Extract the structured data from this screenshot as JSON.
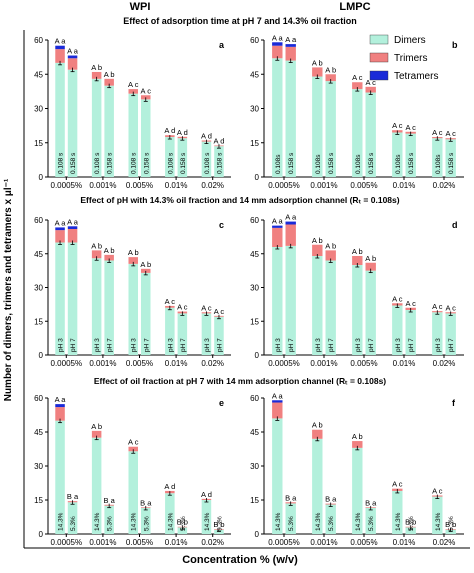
{
  "figure": {
    "ylabel": "Number of dimers, trimers and tetramers x μl⁻¹",
    "xlabel": "Concentration % (w/v)",
    "col_titles": [
      "WPI",
      "LMPC"
    ],
    "row_titles": [
      "Effect of adsorption time at pH 7 and 14.3% oil fraction",
      "Effect of pH with 14.3% oil fraction and 14 mm adsorption channel (Rₜ = 0.108s)",
      "Effect of oil fraction at pH 7 with 14 mm adsorption channel (Rₜ = 0.108s)"
    ],
    "legend": [
      {
        "name": "Dimers",
        "color": "#b3f0dc"
      },
      {
        "name": "Trimers",
        "color": "#f08080"
      },
      {
        "name": "Tetramers",
        "color": "#1a2ad8"
      }
    ]
  },
  "chart_data": [
    {
      "panel": "a",
      "type": "bar",
      "stacked": true,
      "categories": [
        "0.0005%",
        "0.001%",
        "0.005%",
        "0.01%",
        "0.02%"
      ],
      "bar_labels": [
        "0.108 s",
        "0.158 s"
      ],
      "ylim": [
        0,
        60
      ],
      "yticks": [
        0,
        15,
        30,
        45,
        60
      ],
      "groups": [
        {
          "bars": [
            {
              "dimers": 50,
              "trimers": 6,
              "tetramers": 1.5
            },
            {
              "dimers": 47,
              "trimers": 5,
              "tetramers": 1.2
            }
          ],
          "letters": [
            "A a",
            "A a"
          ]
        },
        {
          "bars": [
            {
              "dimers": 43,
              "trimers": 3
            },
            {
              "dimers": 40,
              "trimers": 3
            }
          ],
          "letters": [
            "A b",
            "A b"
          ]
        },
        {
          "bars": [
            {
              "dimers": 36.5,
              "trimers": 2
            },
            {
              "dimers": 34,
              "trimers": 1.8
            }
          ],
          "letters": [
            "A c",
            "A c"
          ]
        },
        {
          "bars": [
            {
              "dimers": 17.5,
              "trimers": 0.8
            },
            {
              "dimers": 17,
              "trimers": 0.6
            }
          ],
          "letters": [
            "A d",
            "A d"
          ]
        },
        {
          "bars": [
            {
              "dimers": 15.5,
              "trimers": 0.5
            },
            {
              "dimers": 13.5,
              "trimers": 0.3
            }
          ],
          "letters": [
            "A d",
            "A d"
          ]
        }
      ]
    },
    {
      "panel": "b",
      "type": "bar",
      "stacked": true,
      "categories": [
        "0.0005%",
        "0.001%",
        "0.005%",
        "0.01%",
        "0.02%"
      ],
      "bar_labels": [
        "0.108s",
        "0.158 s"
      ],
      "ylim": [
        0,
        60
      ],
      "yticks": [
        0,
        15,
        30,
        45,
        60
      ],
      "groups": [
        {
          "bars": [
            {
              "dimers": 52,
              "trimers": 5.5,
              "tetramers": 1.5
            },
            {
              "dimers": 51,
              "trimers": 6,
              "tetramers": 1.2
            }
          ],
          "letters": [
            "A a",
            "A a"
          ]
        },
        {
          "bars": [
            {
              "dimers": 44,
              "trimers": 4
            },
            {
              "dimers": 42,
              "trimers": 3
            }
          ],
          "letters": [
            "A b",
            "A b"
          ]
        },
        {
          "bars": [
            {
              "dimers": 38.5,
              "trimers": 3
            },
            {
              "dimers": 37,
              "trimers": 2.5
            }
          ],
          "letters": [
            "A c",
            "A c"
          ]
        },
        {
          "bars": [
            {
              "dimers": 19.5,
              "trimers": 1
            },
            {
              "dimers": 19,
              "trimers": 0.8
            }
          ],
          "letters": [
            "A c",
            "A c"
          ]
        },
        {
          "bars": [
            {
              "dimers": 17,
              "trimers": 0.5
            },
            {
              "dimers": 16.5,
              "trimers": 0.5
            }
          ],
          "letters": [
            "A c",
            "A c"
          ]
        }
      ]
    },
    {
      "panel": "c",
      "type": "bar",
      "stacked": true,
      "categories": [
        "0.0005%",
        "0.001%",
        "0.005%",
        "0.01%",
        "0.02%"
      ],
      "bar_labels": [
        "pH 3",
        "pH 7"
      ],
      "ylim": [
        0,
        60
      ],
      "yticks": [
        0,
        15,
        30,
        45,
        60
      ],
      "groups": [
        {
          "bars": [
            {
              "dimers": 50,
              "trimers": 5.5,
              "tetramers": 1.2
            },
            {
              "dimers": 50,
              "trimers": 6,
              "tetramers": 1.2
            }
          ],
          "letters": [
            "A a",
            "A a"
          ]
        },
        {
          "bars": [
            {
              "dimers": 43,
              "trimers": 3.5
            },
            {
              "dimers": 42,
              "trimers": 2.5
            }
          ],
          "letters": [
            "A b",
            "A b"
          ]
        },
        {
          "bars": [
            {
              "dimers": 40.5,
              "trimers": 3
            },
            {
              "dimers": 36.5,
              "trimers": 1.8
            }
          ],
          "letters": [
            "A b",
            "A b"
          ]
        },
        {
          "bars": [
            {
              "dimers": 21,
              "trimers": 0.8
            },
            {
              "dimers": 18.5,
              "trimers": 0.8
            }
          ],
          "letters": [
            "A c",
            "A c"
          ]
        },
        {
          "bars": [
            {
              "dimers": 18.5,
              "trimers": 0.5
            },
            {
              "dimers": 17,
              "trimers": 0.4
            }
          ],
          "letters": [
            "A c",
            "A c"
          ]
        }
      ]
    },
    {
      "panel": "d",
      "type": "bar",
      "stacked": true,
      "categories": [
        "0.0005%",
        "0.001%",
        "0.005%",
        "0.01%",
        "0.02%"
      ],
      "bar_labels": [
        "pH 3",
        "pH 7"
      ],
      "ylim": [
        0,
        60
      ],
      "yticks": [
        0,
        15,
        30,
        45,
        60
      ],
      "groups": [
        {
          "bars": [
            {
              "dimers": 48,
              "trimers": 8.5,
              "tetramers": 1.0
            },
            {
              "dimers": 48.5,
              "trimers": 9.5,
              "tetramers": 1.3
            }
          ],
          "letters": [
            "A a",
            "A a"
          ]
        },
        {
          "bars": [
            {
              "dimers": 44,
              "trimers": 5
            },
            {
              "dimers": 42,
              "trimers": 4.5
            }
          ],
          "letters": [
            "A b",
            "A b"
          ]
        },
        {
          "bars": [
            {
              "dimers": 40,
              "trimers": 4
            },
            {
              "dimers": 37.5,
              "trimers": 3.5
            }
          ],
          "letters": [
            "A b",
            "A b"
          ]
        },
        {
          "bars": [
            {
              "dimers": 22,
              "trimers": 1
            },
            {
              "dimers": 20,
              "trimers": 1
            }
          ],
          "letters": [
            "A c",
            "A c"
          ]
        },
        {
          "bars": [
            {
              "dimers": 19,
              "trimers": 0.5
            },
            {
              "dimers": 18.5,
              "trimers": 0.5
            }
          ],
          "letters": [
            "A c",
            "A c"
          ]
        }
      ]
    },
    {
      "panel": "e",
      "type": "bar",
      "stacked": true,
      "categories": [
        "0.0005%",
        "0.001%",
        "0.005%",
        "0.01%",
        "0.02%"
      ],
      "bar_labels": [
        "14.3%",
        "5.3%"
      ],
      "ylim": [
        0,
        60
      ],
      "yticks": [
        0,
        15,
        30,
        45,
        60
      ],
      "groups": [
        {
          "bars": [
            {
              "dimers": 50,
              "trimers": 6,
              "tetramers": 1.3
            },
            {
              "dimers": 14,
              "trimers": 0.5
            }
          ],
          "letters": [
            "A a",
            "B a"
          ]
        },
        {
          "bars": [
            {
              "dimers": 42.5,
              "trimers": 3
            },
            {
              "dimers": 12.5,
              "trimers": 0.4
            }
          ],
          "letters": [
            "A b",
            "B a"
          ]
        },
        {
          "bars": [
            {
              "dimers": 36.5,
              "trimers": 2
            },
            {
              "dimers": 11.5,
              "trimers": 0.3
            }
          ],
          "letters": [
            "A c",
            "B a"
          ]
        },
        {
          "bars": [
            {
              "dimers": 18,
              "trimers": 1
            },
            {
              "dimers": 3,
              "trimers": 0.2
            }
          ],
          "letters": [
            "A d",
            "B b"
          ]
        },
        {
          "bars": [
            {
              "dimers": 15,
              "trimers": 0.5
            },
            {
              "dimers": 2,
              "trimers": 0.1
            }
          ],
          "letters": [
            "A d",
            "B b"
          ]
        }
      ]
    },
    {
      "panel": "f",
      "type": "bar",
      "stacked": true,
      "categories": [
        "0.0005%",
        "0.001%",
        "0.005%",
        "0.01%",
        "0.02%"
      ],
      "bar_labels": [
        "14.3%",
        "5.3%"
      ],
      "ylim": [
        0,
        60
      ],
      "yticks": [
        0,
        15,
        30,
        45,
        60
      ],
      "groups": [
        {
          "bars": [
            {
              "dimers": 51,
              "trimers": 7,
              "tetramers": 1.0
            },
            {
              "dimers": 13.5,
              "trimers": 0.5
            }
          ],
          "letters": [
            "A a",
            "B a"
          ]
        },
        {
          "bars": [
            {
              "dimers": 42,
              "trimers": 4
            },
            {
              "dimers": 13,
              "trimers": 0.4
            }
          ],
          "letters": [
            "A b",
            "B a"
          ]
        },
        {
          "bars": [
            {
              "dimers": 38,
              "trimers": 3
            },
            {
              "dimers": 11.5,
              "trimers": 0.3
            }
          ],
          "letters": [
            "A b",
            "B a"
          ]
        },
        {
          "bars": [
            {
              "dimers": 19,
              "trimers": 1
            },
            {
              "dimers": 3,
              "trimers": 0.2
            }
          ],
          "letters": [
            "A c",
            "B b"
          ]
        },
        {
          "bars": [
            {
              "dimers": 16.5,
              "trimers": 0.5
            },
            {
              "dimers": 2,
              "trimers": 0.1
            }
          ],
          "letters": [
            "A c",
            "B b"
          ]
        }
      ]
    }
  ]
}
